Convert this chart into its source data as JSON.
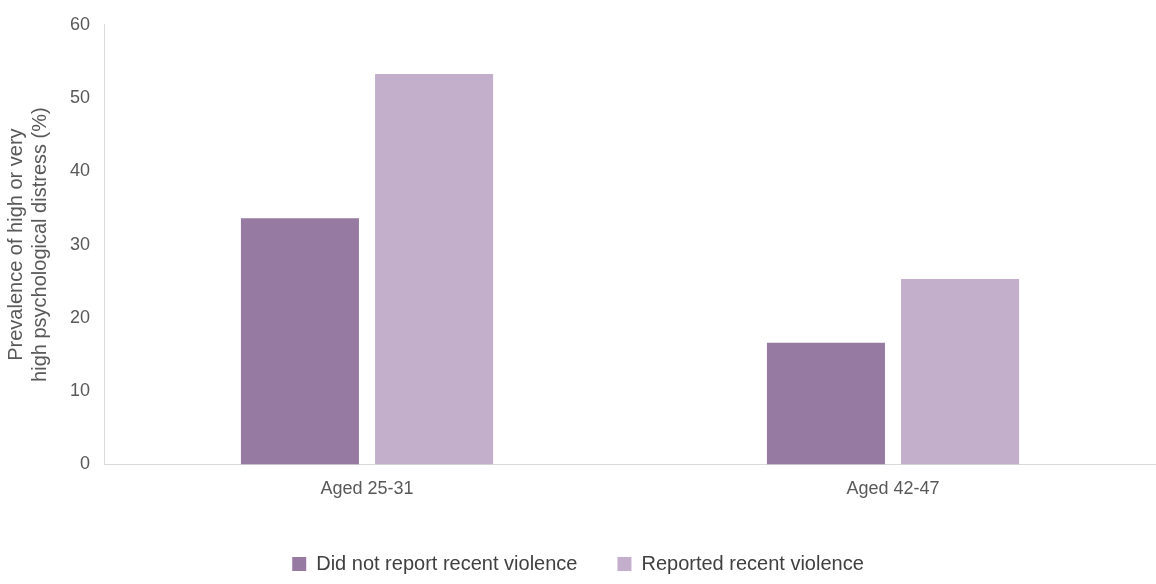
{
  "chart_data": {
    "type": "bar",
    "ylabel": "Prevalence of high or very high psychological distress (%)",
    "categories": [
      "Aged 25-31",
      "Aged 42-47"
    ],
    "series": [
      {
        "name": "Did not report recent violence",
        "color": "#967aa1",
        "values": [
          33.6,
          16.6
        ]
      },
      {
        "name": "Reported recent violence",
        "color": "#c3aecb",
        "values": [
          53.3,
          25.3
        ]
      }
    ],
    "ylim": [
      0,
      60
    ],
    "yticks": [
      0,
      10,
      20,
      30,
      40,
      50,
      60
    ],
    "grid": false,
    "legend": "bottom"
  }
}
